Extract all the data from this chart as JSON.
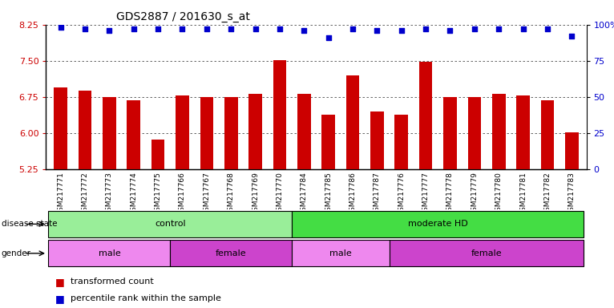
{
  "title": "GDS2887 / 201630_s_at",
  "samples": [
    "GSM217771",
    "GSM217772",
    "GSM217773",
    "GSM217774",
    "GSM217775",
    "GSM217766",
    "GSM217767",
    "GSM217768",
    "GSM217769",
    "GSM217770",
    "GSM217784",
    "GSM217785",
    "GSM217786",
    "GSM217787",
    "GSM217776",
    "GSM217777",
    "GSM217778",
    "GSM217779",
    "GSM217780",
    "GSM217781",
    "GSM217782",
    "GSM217783"
  ],
  "bar_values": [
    6.95,
    6.88,
    6.75,
    6.68,
    5.87,
    6.78,
    6.75,
    6.75,
    6.82,
    7.52,
    6.82,
    6.38,
    7.2,
    6.45,
    6.38,
    7.48,
    6.75,
    6.75,
    6.82,
    6.78,
    6.68,
    6.02
  ],
  "dot_values": [
    98,
    97,
    96,
    97,
    97,
    97,
    97,
    97,
    97,
    97,
    96,
    91,
    97,
    96,
    96,
    97,
    96,
    97,
    97,
    97,
    97,
    92
  ],
  "ylim_left": [
    5.25,
    8.25
  ],
  "ylim_right": [
    0,
    100
  ],
  "yticks_left": [
    5.25,
    6.0,
    6.75,
    7.5,
    8.25
  ],
  "yticks_right": [
    0,
    25,
    50,
    75,
    100
  ],
  "ytick_labels_right": [
    "0",
    "25",
    "50",
    "75",
    "100%"
  ],
  "bar_color": "#cc0000",
  "dot_color": "#0000cc",
  "disease_state_groups": [
    {
      "label": "control",
      "start": 0,
      "end": 10,
      "color": "#99ee99"
    },
    {
      "label": "moderate HD",
      "start": 10,
      "end": 22,
      "color": "#44dd44"
    }
  ],
  "gender_groups": [
    {
      "label": "male",
      "start": 0,
      "end": 5,
      "color": "#ee88ee"
    },
    {
      "label": "female",
      "start": 5,
      "end": 10,
      "color": "#cc44cc"
    },
    {
      "label": "male",
      "start": 10,
      "end": 14,
      "color": "#ee88ee"
    },
    {
      "label": "female",
      "start": 14,
      "end": 22,
      "color": "#cc44cc"
    }
  ],
  "legend_items": [
    {
      "label": "transformed count",
      "color": "#cc0000"
    },
    {
      "label": "percentile rank within the sample",
      "color": "#0000cc"
    }
  ],
  "bg_color": "#ffffff",
  "plot_bg": "#ffffff"
}
